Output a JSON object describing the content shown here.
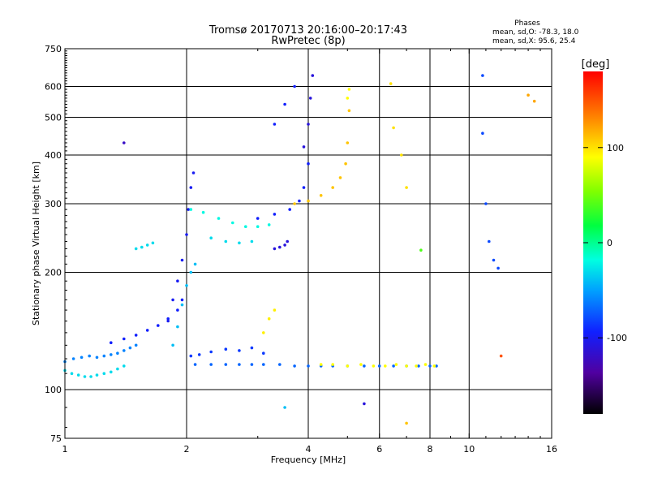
{
  "chart_data": {
    "type": "scatter",
    "title": "Tromsø 20170713 20:16:00–20:17:43",
    "subtitle": "RwPretec (8p)",
    "xlabel": "Frequency [MHz]",
    "ylabel": "Stationary phase Virtual Height [km]",
    "x_scale": "log",
    "y_scale": "log",
    "xlim": [
      1,
      16
    ],
    "ylim": [
      75,
      750
    ],
    "x_ticks": [
      1,
      2,
      4,
      6,
      8,
      10,
      16
    ],
    "x_tick_labels": [
      "1",
      "2",
      "4",
      "6",
      "8",
      "10",
      "16"
    ],
    "y_ticks": [
      75,
      100,
      200,
      300,
      400,
      500,
      600,
      750
    ],
    "y_tick_labels": [
      "75",
      "100",
      "200",
      "300",
      "400",
      "500",
      "600",
      "750"
    ],
    "grid": true,
    "stats": {
      "header": "Phases",
      "line_o": "mean, sd,O: -78.3, 18.0",
      "line_x": "mean, sd,X:  95.6, 25.4"
    },
    "colorbar": {
      "label": "[deg]",
      "range": [
        -180,
        180
      ],
      "ticks": [
        100,
        0,
        -100
      ],
      "tick_labels": [
        "100",
        "0",
        "-100"
      ]
    },
    "series": [
      {
        "x": [
          1.0,
          1.04,
          1.08,
          1.12,
          1.16,
          1.2,
          1.25,
          1.3,
          1.35,
          1.4
        ],
        "y": [
          112,
          110,
          109,
          108,
          108,
          109,
          110,
          111,
          113,
          115
        ],
        "phase": -30
      },
      {
        "x": [
          1.0,
          1.05,
          1.1,
          1.15,
          1.2,
          1.25,
          1.3,
          1.35,
          1.4,
          1.45,
          1.5
        ],
        "y": [
          118,
          120,
          121,
          122,
          121,
          122,
          123,
          124,
          126,
          128,
          130
        ],
        "phase": -60
      },
      {
        "x": [
          1.3,
          1.4,
          1.5,
          1.6,
          1.7,
          1.8,
          1.9,
          1.95
        ],
        "y": [
          132,
          135,
          138,
          142,
          146,
          152,
          160,
          170
        ],
        "phase": -95
      },
      {
        "x": [
          1.8,
          1.85,
          1.9,
          1.95,
          2.0,
          2.02,
          2.05,
          2.08
        ],
        "y": [
          150,
          170,
          190,
          215,
          250,
          290,
          330,
          360
        ],
        "phase": -100
      },
      {
        "x": [
          1.85,
          1.9,
          1.95,
          2.0,
          2.05,
          2.1
        ],
        "y": [
          130,
          145,
          165,
          185,
          200,
          210
        ],
        "phase": -40
      },
      {
        "x": [
          2.05,
          2.15,
          2.3,
          2.5,
          2.7,
          2.9,
          3.1
        ],
        "y": [
          122,
          123,
          125,
          127,
          126,
          128,
          124
        ],
        "phase": -85
      },
      {
        "x": [
          2.1,
          2.3,
          2.5,
          2.7,
          2.9,
          3.1,
          3.4,
          3.7,
          4.0,
          4.3,
          4.6,
          5.0,
          5.5,
          6.0,
          6.5,
          7.0,
          7.5,
          8.0,
          8.3
        ],
        "y": [
          116,
          116,
          116,
          116,
          116,
          116,
          116,
          115,
          115,
          115,
          115,
          115,
          115,
          115,
          115,
          115,
          115,
          115,
          115
        ],
        "phase": -70
      },
      {
        "x": [
          4.3,
          4.6,
          5.0,
          5.4,
          5.8,
          6.2,
          6.6,
          7.0,
          7.4,
          7.8,
          8.2
        ],
        "y": [
          116,
          116,
          115,
          116,
          115,
          115,
          116,
          115,
          115,
          116,
          115
        ],
        "phase": 90
      },
      {
        "x": [
          2.05,
          2.2,
          2.4,
          2.6,
          2.8,
          3.0,
          3.2
        ],
        "y": [
          290,
          285,
          275,
          268,
          262,
          262,
          265
        ],
        "phase": -20
      },
      {
        "x": [
          2.3,
          2.5,
          2.7,
          2.9
        ],
        "y": [
          245,
          240,
          238,
          240
        ],
        "phase": -30
      },
      {
        "x": [
          3.0,
          3.3,
          3.6,
          3.8,
          3.9,
          4.0
        ],
        "y": [
          275,
          282,
          290,
          305,
          330,
          380
        ],
        "phase": -95
      },
      {
        "x": [
          3.9,
          4.0,
          4.05,
          4.1
        ],
        "y": [
          420,
          480,
          560,
          640
        ],
        "phase": -110
      },
      {
        "x": [
          3.3,
          3.5,
          3.7
        ],
        "y": [
          480,
          540,
          600
        ],
        "phase": -95
      },
      {
        "x": [
          3.7,
          4.0,
          4.3,
          4.6,
          4.8,
          4.95,
          5.0,
          5.05
        ],
        "y": [
          300,
          305,
          315,
          330,
          350,
          380,
          430,
          520
        ],
        "phase": 110
      },
      {
        "x": [
          5.0,
          5.05
        ],
        "y": [
          560,
          590
        ],
        "phase": 90
      },
      {
        "x": [
          3.1,
          3.2,
          3.3
        ],
        "y": [
          140,
          152,
          160
        ],
        "phase": 95
      },
      {
        "x": [
          1.5,
          1.55,
          1.6,
          1.65
        ],
        "y": [
          230,
          232,
          235,
          238
        ],
        "phase": -30
      },
      {
        "x": [
          3.3,
          3.4,
          3.5,
          3.55
        ],
        "y": [
          230,
          232,
          235,
          240
        ],
        "phase": -110
      },
      {
        "x": [
          7.6
        ],
        "y": [
          228
        ],
        "phase": 40
      },
      {
        "x": [
          10.8,
          10.8,
          11.0,
          11.2,
          11.5,
          11.8
        ],
        "y": [
          640,
          455,
          300,
          240,
          215,
          205
        ],
        "phase": -80
      },
      {
        "x": [
          6.4,
          6.5,
          6.8,
          7.0
        ],
        "y": [
          610,
          470,
          400,
          330
        ],
        "phase": 100
      },
      {
        "x": [
          1.4
        ],
        "y": [
          430
        ],
        "phase": -120
      },
      {
        "x": [
          5.5
        ],
        "y": [
          92
        ],
        "phase": -110
      },
      {
        "x": [
          7.0
        ],
        "y": [
          82
        ],
        "phase": 110
      },
      {
        "x": [
          14.0,
          14.5
        ],
        "y": [
          570,
          550
        ],
        "phase": 120
      },
      {
        "x": [
          12.0
        ],
        "y": [
          122
        ],
        "phase": 150
      },
      {
        "x": [
          3.5
        ],
        "y": [
          90
        ],
        "phase": -40
      }
    ]
  }
}
